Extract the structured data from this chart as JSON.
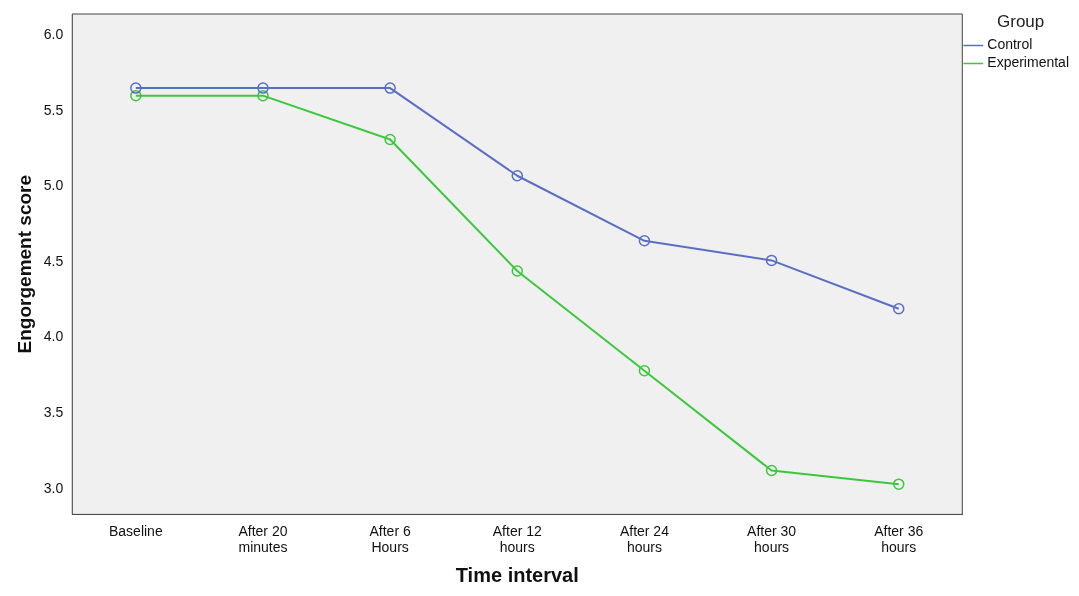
{
  "chart_data": {
    "type": "line",
    "xlabel": "Time interval",
    "ylabel": "Engorgement score",
    "legend_title": "Group",
    "legend": "top right",
    "marker": "circle",
    "grid": false,
    "categories": [
      "Baseline",
      "After 20 minutes",
      "After 6 Hours",
      "After 12 hours",
      "After 24 hours",
      "After 30 hours",
      "After 36 hours"
    ],
    "ylim": [
      2.83,
      6.14
    ],
    "yticks": [
      {
        "value": 3,
        "label": "3.0"
      },
      {
        "value": 3.5,
        "label": "3.5"
      },
      {
        "value": 4,
        "label": "4.0"
      },
      {
        "value": 4.5,
        "label": "4.5"
      },
      {
        "value": 5,
        "label": "5.0"
      },
      {
        "value": 5.5,
        "label": "5.5"
      },
      {
        "value": 6,
        "label": "6.0"
      }
    ],
    "series": [
      {
        "name": "Control",
        "color": "#5a6fc4",
        "values": [
          5.65,
          5.65,
          5.65,
          5.07,
          4.64,
          4.51,
          4.19
        ]
      },
      {
        "name": "Experimental",
        "color": "#3cc83c",
        "values": [
          5.6,
          5.6,
          5.31,
          4.44,
          3.78,
          3.12,
          3.03
        ]
      }
    ]
  }
}
